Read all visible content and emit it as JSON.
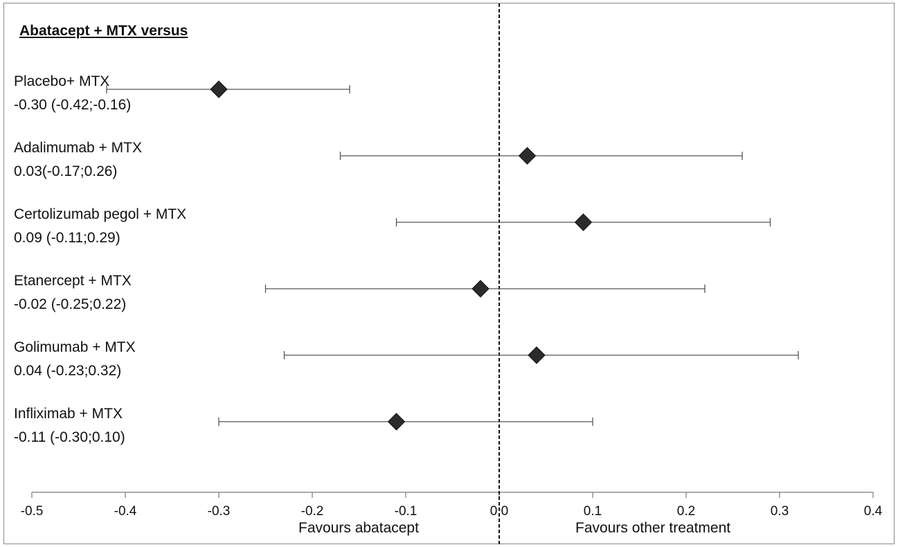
{
  "chart_data": {
    "type": "forest",
    "title": "Abatacept + MTX versus",
    "xlim": [
      -0.5,
      0.4
    ],
    "xticks": [
      "-0.5",
      "-0.4",
      "-0.3",
      "-0.2",
      "-0.1",
      "0.0",
      "0.1",
      "0.2",
      "0.3",
      "0.4"
    ],
    "xtick_values": [
      -0.5,
      -0.4,
      -0.3,
      -0.2,
      -0.1,
      0.0,
      0.1,
      0.2,
      0.3,
      0.4
    ],
    "reference_line": 0.0,
    "x_annotations": {
      "left": "Favours abatacept",
      "right": "Favours other treatment"
    },
    "rows": [
      {
        "name": "Placebo+ MTX",
        "estimate_text": "-0.30 (-0.42;-0.16)",
        "estimate": -0.3,
        "lower": -0.42,
        "upper": -0.16
      },
      {
        "name": "Adalimumab + MTX",
        "estimate_text": "0.03(-0.17;0.26)",
        "estimate": 0.03,
        "lower": -0.17,
        "upper": 0.26
      },
      {
        "name": "Certolizumab pegol + MTX",
        "estimate_text": "0.09 (-0.11;0.29)",
        "estimate": 0.09,
        "lower": -0.11,
        "upper": 0.29
      },
      {
        "name": "Etanercept + MTX",
        "estimate_text": "-0.02 (-0.25;0.22)",
        "estimate": -0.02,
        "lower": -0.25,
        "upper": 0.22
      },
      {
        "name": "Golimumab + MTX",
        "estimate_text": "0.04 (-0.23;0.32)",
        "estimate": 0.04,
        "lower": -0.23,
        "upper": 0.32
      },
      {
        "name": "Infliximab + MTX",
        "estimate_text": "-0.11 (-0.30;0.10)",
        "estimate": -0.11,
        "lower": -0.3,
        "upper": 0.1
      }
    ]
  }
}
